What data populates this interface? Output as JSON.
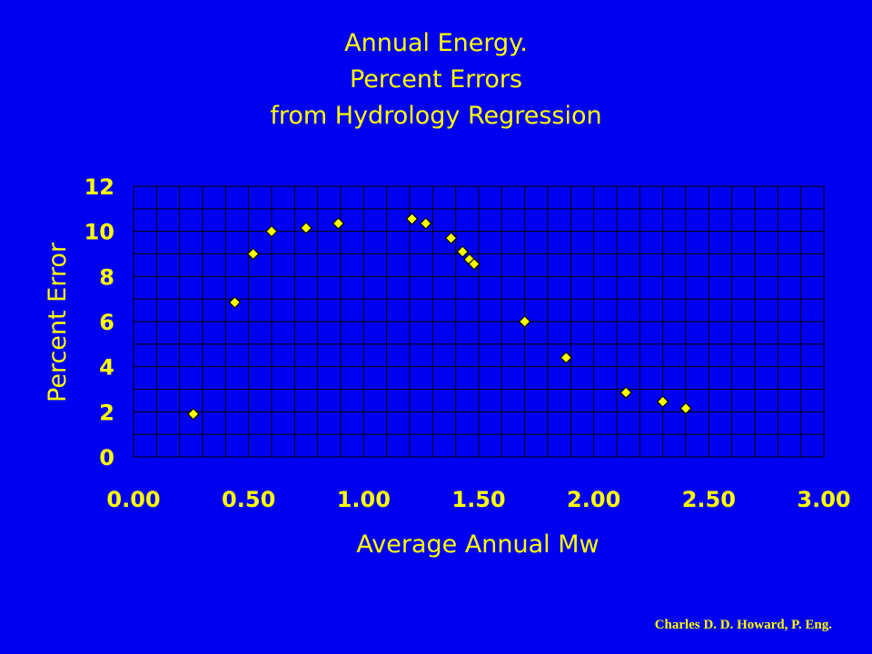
{
  "chart_data": {
    "type": "scatter",
    "title": [
      "Annual Energy.",
      "Percent Errors",
      "from Hydrology Regression"
    ],
    "xlabel": "Average Annual Mw",
    "ylabel": "Percent Error",
    "xlim": [
      0,
      3
    ],
    "ylim": [
      0,
      12
    ],
    "x_ticks": [
      0,
      0.5,
      1,
      1.5,
      2,
      2.5,
      3
    ],
    "x_tick_labels": [
      "0.00",
      "0.50",
      "1.00",
      "1.50",
      "2.00",
      "2.50",
      "3.00"
    ],
    "y_ticks": [
      0,
      2,
      4,
      6,
      8,
      10,
      12
    ],
    "y_tick_labels": [
      "0",
      "2",
      "4",
      "6",
      "8",
      "10",
      "12"
    ],
    "grid": true,
    "legend": "none",
    "marker": "diamond",
    "marker_color": "#ffff00",
    "marker_edge": "#000000",
    "points": [
      {
        "x": 0.26,
        "y": 1.9
      },
      {
        "x": 0.44,
        "y": 6.85
      },
      {
        "x": 0.52,
        "y": 9.0
      },
      {
        "x": 0.6,
        "y": 10.0
      },
      {
        "x": 0.75,
        "y": 10.15
      },
      {
        "x": 0.89,
        "y": 10.35
      },
      {
        "x": 1.21,
        "y": 10.55
      },
      {
        "x": 1.27,
        "y": 10.35
      },
      {
        "x": 1.38,
        "y": 9.7
      },
      {
        "x": 1.43,
        "y": 9.1
      },
      {
        "x": 1.46,
        "y": 8.75
      },
      {
        "x": 1.48,
        "y": 8.55
      },
      {
        "x": 1.7,
        "y": 6.0
      },
      {
        "x": 1.88,
        "y": 4.4
      },
      {
        "x": 2.14,
        "y": 2.85
      },
      {
        "x": 2.3,
        "y": 2.45
      },
      {
        "x": 2.4,
        "y": 2.15
      }
    ]
  },
  "colors": {
    "background": "#0000f0",
    "text": "#ffff00",
    "grid": "#000000"
  },
  "credit": "Charles D. D. Howard, P. Eng."
}
